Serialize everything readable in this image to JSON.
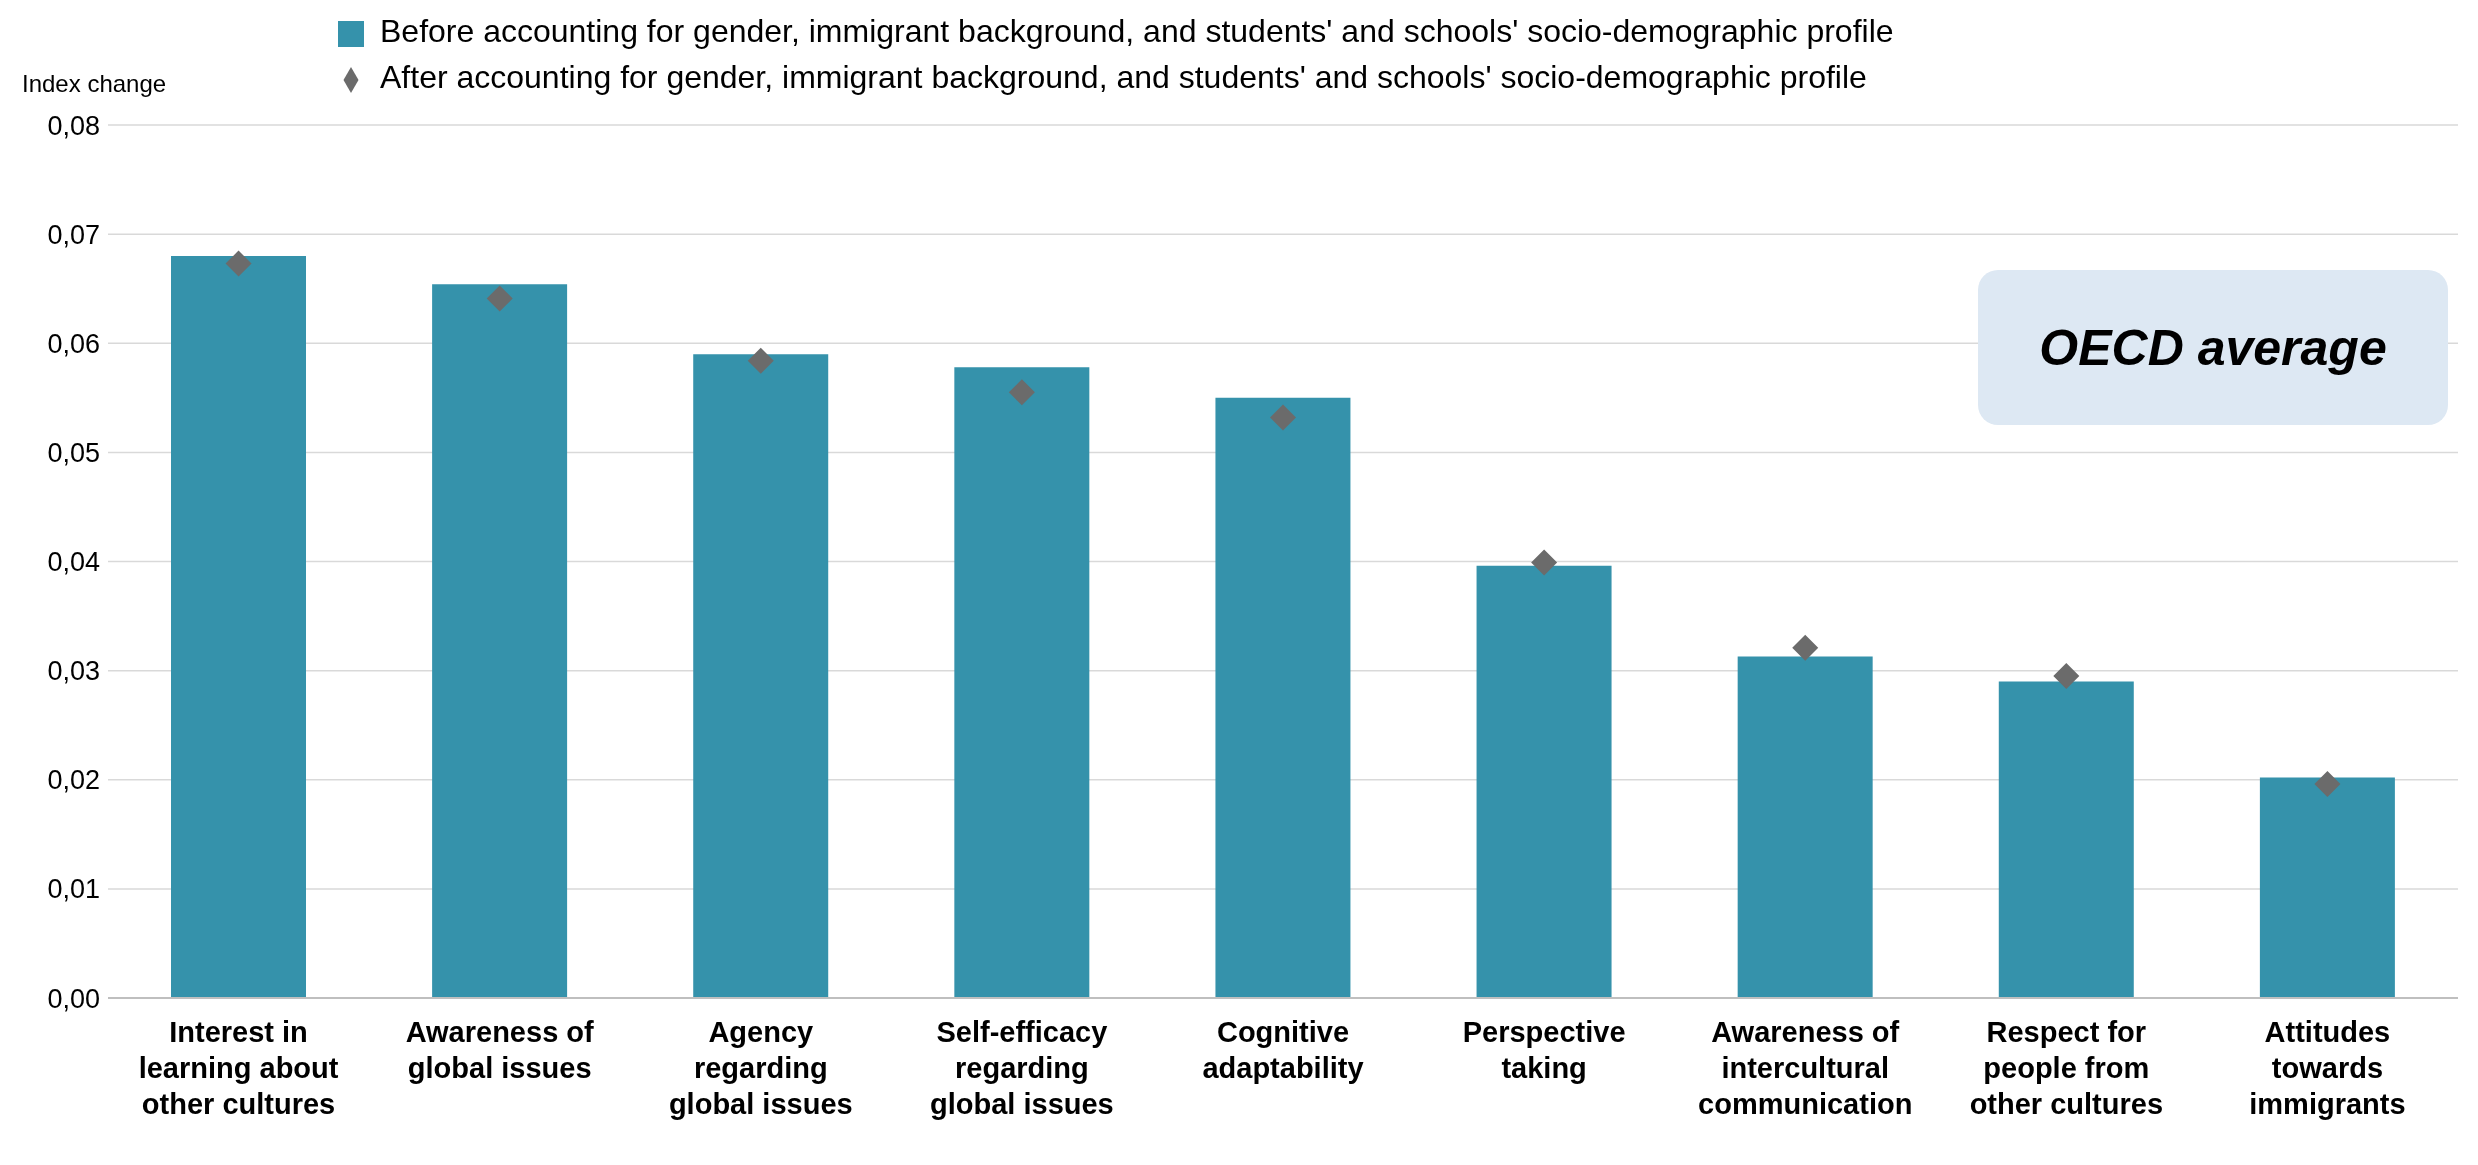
{
  "chart_data": {
    "type": "bar",
    "ylabel": "Index change",
    "annotations": [
      "OECD average"
    ],
    "categories": [
      "Interest in learning about other cultures",
      "Awareness of global issues",
      "Agency regarding global issues",
      "Self-efficacy regarding global issues",
      "Cognitive adaptability",
      "Perspective taking",
      "Awareness of intercultural communication",
      "Respect for people from other cultures",
      "Attitudes towards immigrants"
    ],
    "series": [
      {
        "name": "Before accounting for gender, immigrant background, and students' and schools' socio-demographic profile",
        "color": "#3592ab",
        "values": [
          0.068,
          0.0654,
          0.059,
          0.0578,
          0.055,
          0.0396,
          0.0313,
          0.029,
          0.0202
        ]
      },
      {
        "name": "After accounting for gender, immigrant background, and students' and schools' socio-demographic profile",
        "type": "scatter",
        "marker": "diamond",
        "color": "#6b6b6b",
        "values": [
          0.0673,
          0.0641,
          0.0584,
          0.0555,
          0.0532,
          0.0399,
          0.0321,
          0.0295,
          0.0196
        ]
      }
    ],
    "ylim": [
      0,
      0.08
    ],
    "yticks": [
      {
        "value": 0,
        "label": "0,00"
      },
      {
        "value": 0.01,
        "label": "0,01"
      },
      {
        "value": 0.02,
        "label": "0,02"
      },
      {
        "value": 0.03,
        "label": "0,03"
      },
      {
        "value": 0.04,
        "label": "0,04"
      },
      {
        "value": 0.05,
        "label": "0,05"
      },
      {
        "value": 0.06,
        "label": "0,06"
      },
      {
        "value": 0.07,
        "label": "0,07"
      },
      {
        "value": 0.08,
        "label": "0,08"
      }
    ],
    "grid": "y",
    "legend": "top"
  }
}
